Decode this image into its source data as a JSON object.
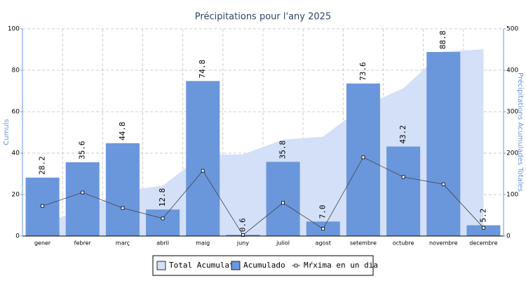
{
  "chart_data": {
    "type": "bar",
    "title": "Précipitations pour l'any 2025",
    "y_label": "Cumuls",
    "y2_label": "Précipitations Acumulades Totales",
    "categories": [
      "gener",
      "febrer",
      "març",
      "abril",
      "maig",
      "juny",
      "juliol",
      "agost",
      "setembre",
      "octubre",
      "novembre",
      "decembre"
    ],
    "series": [
      {
        "name": "Total Acumulat",
        "type": "area",
        "axis": "y2",
        "color": "#d3e0f7",
        "values": [
          28.2,
          63.8,
          108.6,
          121.4,
          196.2,
          196.8,
          232.6,
          239.6,
          313.2,
          356.4,
          445.2,
          450.4
        ]
      },
      {
        "name": "Acumulado",
        "type": "bar",
        "axis": "y",
        "color": "#6a96dc",
        "values": [
          28.2,
          35.6,
          44.8,
          12.8,
          74.8,
          0.6,
          35.8,
          7.0,
          73.6,
          43.2,
          88.8,
          5.2
        ],
        "value_labels": [
          "28.2",
          "35.6",
          "44.8",
          "12.8",
          "74.8",
          "0.6",
          "35.8",
          "7.0",
          "73.6",
          "43.2",
          "88.8",
          "5.2"
        ]
      },
      {
        "name": "Mŕxima en un dia",
        "type": "line",
        "axis": "y",
        "color": "#444444",
        "values": [
          14.5,
          21,
          13.5,
          8.5,
          31.5,
          0.5,
          16,
          3.5,
          38,
          28.5,
          25,
          4
        ]
      }
    ],
    "ylim": [
      0,
      100
    ],
    "yticks": [
      0,
      20,
      40,
      60,
      80,
      100
    ],
    "y2lim": [
      0,
      500
    ],
    "y2ticks": [
      0,
      100,
      200,
      300,
      400,
      500
    ],
    "grid": true
  }
}
